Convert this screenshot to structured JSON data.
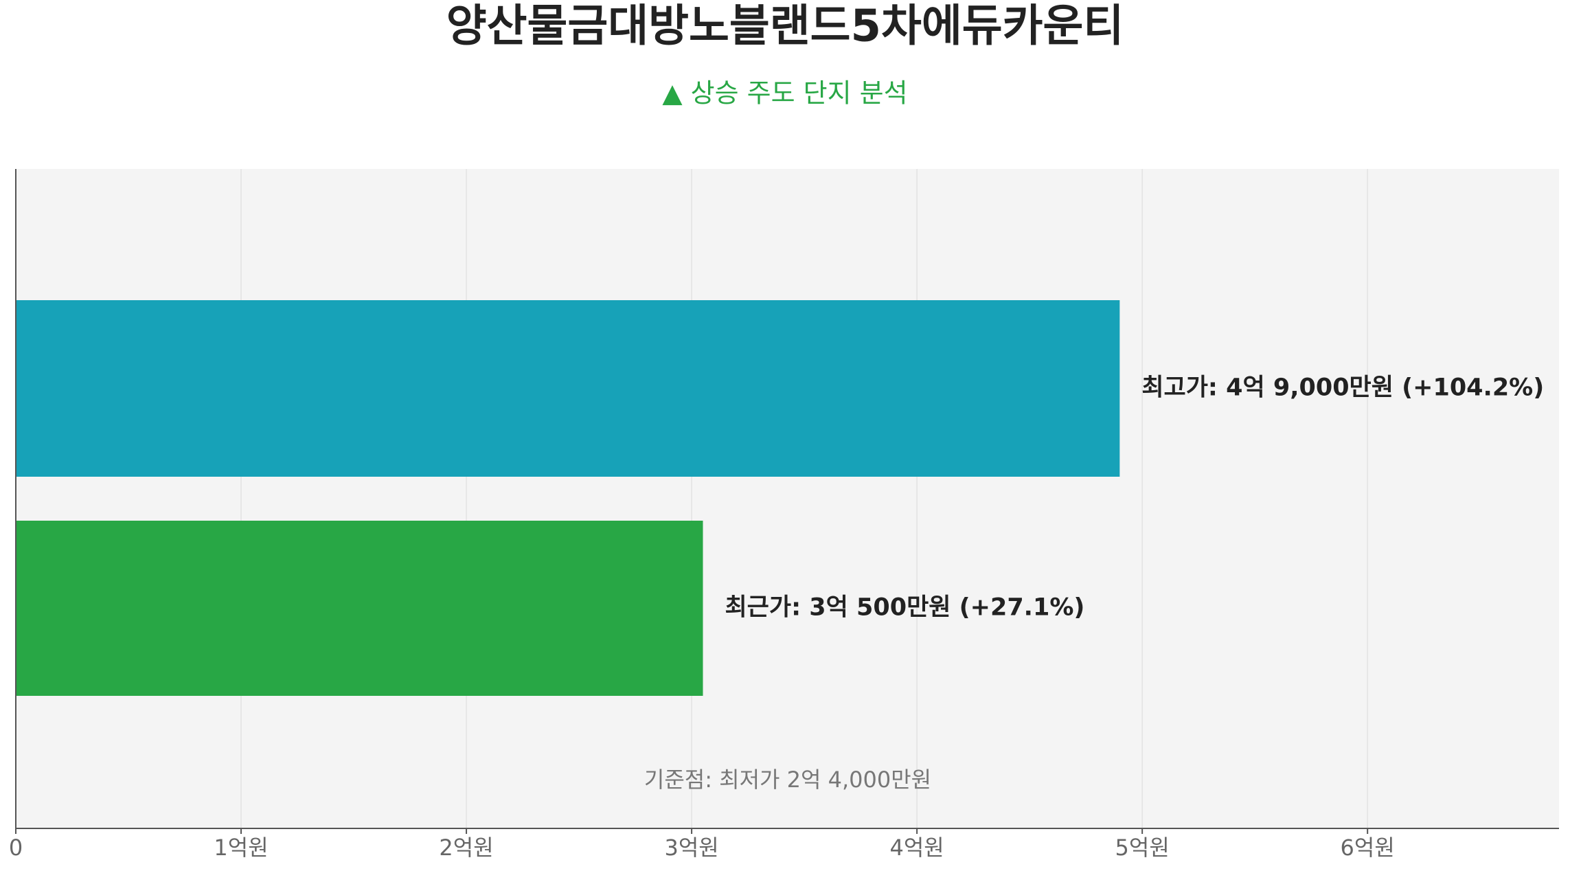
{
  "chart_data": {
    "type": "hbar",
    "title": "양산물금대방노블랜드5차에듀카운티",
    "subtitle": "▲ 상승 주도 단지 분석",
    "values": [
      4.9,
      3.05
    ],
    "value_labels": [
      "최고가: 4억 9,000만원 (+104.2%)",
      "최근가: 3억 500만원 (+27.1%)"
    ],
    "colors": [
      "#17a2b8",
      "#28a745"
    ],
    "annotation": "기준점: 최저가 2억 4,000만원",
    "xlim": [
      0,
      6.85
    ],
    "xticks": [
      0,
      {
        "value": 1,
        "label": "1억원"
      },
      {
        "value": 2,
        "label": "2억원"
      },
      {
        "value": 3,
        "label": "3억원"
      },
      {
        "value": 4,
        "label": "4억원"
      },
      {
        "value": 5,
        "label": "5억원"
      },
      {
        "value": 6,
        "label": "6억원"
      }
    ],
    "grid": true
  }
}
